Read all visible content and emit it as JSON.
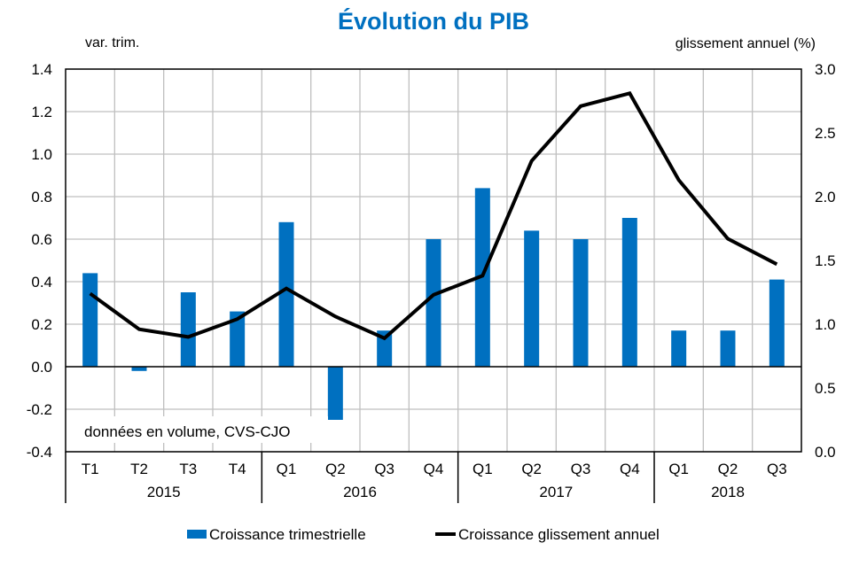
{
  "chart_data": {
    "type": "bar+line",
    "title": "Évolution du PIB",
    "left_axis_label": "var. trim.",
    "right_axis_label": "glissement annuel (%)",
    "annotation": "données en volume, CVS-CJO",
    "left_ylim": [
      -0.4,
      1.4
    ],
    "left_ticks": [
      "-0.4",
      "-0.2",
      "0.0",
      "0.2",
      "0.4",
      "0.6",
      "0.8",
      "1.0",
      "1.2",
      "1.4"
    ],
    "right_ylim": [
      0.0,
      3.0
    ],
    "right_ticks": [
      "0.0",
      "0.5",
      "1.0",
      "1.5",
      "2.0",
      "2.5",
      "3.0"
    ],
    "grid": true,
    "categories": [
      "T1",
      "T2",
      "T3",
      "T4",
      "Q1",
      "Q2",
      "Q3",
      "Q4",
      "Q1",
      "Q2",
      "Q3",
      "Q4",
      "Q1",
      "Q2",
      "Q3"
    ],
    "year_groups": [
      {
        "label": "2015",
        "count": 4
      },
      {
        "label": "2016",
        "count": 4
      },
      {
        "label": "2017",
        "count": 4
      },
      {
        "label": "2018",
        "count": 3
      }
    ],
    "series": [
      {
        "name": "Croissance trimestrielle",
        "type": "bar",
        "axis": "left",
        "color": "#0070C0",
        "values": [
          0.44,
          -0.02,
          0.35,
          0.26,
          0.68,
          -0.25,
          0.17,
          0.6,
          0.84,
          0.64,
          0.6,
          0.7,
          0.17,
          0.17,
          0.41
        ]
      },
      {
        "name": "Croissance glissement annuel",
        "type": "line",
        "axis": "right",
        "color": "#000000",
        "values": [
          1.24,
          0.96,
          0.9,
          1.04,
          1.28,
          1.06,
          0.89,
          1.23,
          1.38,
          2.28,
          2.71,
          2.81,
          2.13,
          1.67,
          1.47
        ]
      }
    ],
    "legend_position": "bottom"
  }
}
